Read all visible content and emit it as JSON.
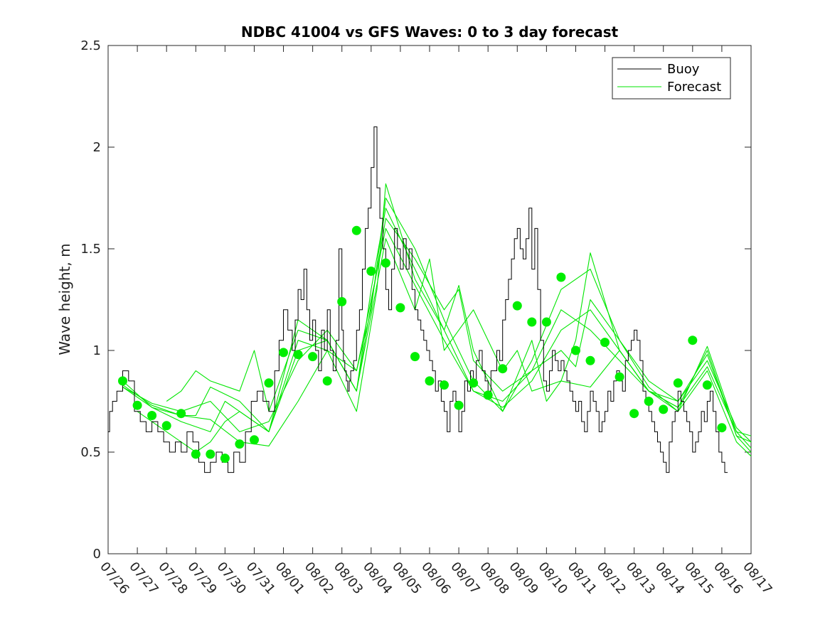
{
  "chart_data": {
    "type": "line",
    "title": "NDBC 41004 vs GFS Waves: 0 to 3 day forecast",
    "xlabel": "",
    "ylabel": "Wave height, m",
    "xlim": [
      0,
      22
    ],
    "ylim": [
      0,
      2.5
    ],
    "yticks": [
      "0",
      "0.5",
      "1",
      "1.5",
      "2",
      "2.5"
    ],
    "ytick_values": [
      0,
      0.5,
      1,
      1.5,
      2,
      2.5
    ],
    "xtick_labels": [
      "07/26",
      "07/27",
      "07/28",
      "07/29",
      "07/30",
      "07/31",
      "08/01",
      "08/02",
      "08/03",
      "08/04",
      "08/05",
      "08/06",
      "08/07",
      "08/08",
      "08/09",
      "08/10",
      "08/11",
      "08/12",
      "08/13",
      "08/14",
      "08/15",
      "08/16",
      "08/17"
    ],
    "legend": {
      "position": "top-right",
      "entries": [
        {
          "name": "Buoy",
          "color": "#000000"
        },
        {
          "name": "Forecast",
          "color": "#00e600"
        }
      ]
    },
    "colors": {
      "buoy": "#000000",
      "forecast": "#00e600",
      "analysis_dots": "#00ee00"
    },
    "buoy": {
      "name": "Buoy",
      "x": [
        0,
        0.05,
        0.15,
        0.3,
        0.5,
        0.7,
        0.9,
        1.1,
        1.3,
        1.5,
        1.7,
        1.9,
        2.1,
        2.3,
        2.5,
        2.7,
        2.9,
        3.1,
        3.3,
        3.5,
        3.7,
        3.9,
        4.1,
        4.3,
        4.5,
        4.7,
        4.9,
        5.1,
        5.3,
        5.5,
        5.7,
        5.85,
        6.0,
        6.15,
        6.3,
        6.4,
        6.5,
        6.6,
        6.7,
        6.8,
        6.9,
        7.0,
        7.1,
        7.2,
        7.3,
        7.4,
        7.5,
        7.6,
        7.7,
        7.8,
        7.9,
        8.0,
        8.05,
        8.1,
        8.15,
        8.2,
        8.25,
        8.3,
        8.4,
        8.5,
        8.6,
        8.7,
        8.8,
        8.9,
        9.0,
        9.1,
        9.2,
        9.3,
        9.4,
        9.5,
        9.6,
        9.7,
        9.8,
        9.9,
        10.0,
        10.1,
        10.2,
        10.3,
        10.4,
        10.5,
        10.6,
        10.7,
        10.8,
        10.9,
        11.0,
        11.1,
        11.2,
        11.3,
        11.4,
        11.5,
        11.6,
        11.7,
        11.8,
        11.9,
        12.0,
        12.1,
        12.2,
        12.3,
        12.4,
        12.5,
        12.6,
        12.7,
        12.8,
        12.9,
        13.0,
        13.1,
        13.2,
        13.3,
        13.4,
        13.5,
        13.6,
        13.7,
        13.8,
        13.9,
        14.0,
        14.1,
        14.2,
        14.3,
        14.4,
        14.5,
        14.6,
        14.7,
        14.8,
        14.9,
        15.0,
        15.1,
        15.2,
        15.3,
        15.4,
        15.5,
        15.6,
        15.7,
        15.8,
        15.9,
        16.0,
        16.1,
        16.2,
        16.3,
        16.4,
        16.5,
        16.6,
        16.7,
        16.8,
        16.9,
        17.0,
        17.1,
        17.2,
        17.3,
        17.4,
        17.5,
        17.6,
        17.7,
        17.8,
        17.9,
        18.0,
        18.1,
        18.2,
        18.3,
        18.4,
        18.5,
        18.6,
        18.7,
        18.8,
        18.9,
        19.0,
        19.1,
        19.2,
        19.3,
        19.4,
        19.5,
        19.6,
        19.7,
        19.8,
        19.9,
        20.0,
        20.1,
        20.2,
        20.3,
        20.4,
        20.5,
        20.6,
        20.7,
        20.8,
        20.9,
        21.0,
        21.1,
        21.2
      ],
      "y": [
        0.6,
        0.7,
        0.75,
        0.8,
        0.9,
        0.85,
        0.7,
        0.65,
        0.6,
        0.65,
        0.6,
        0.55,
        0.5,
        0.55,
        0.5,
        0.6,
        0.55,
        0.45,
        0.4,
        0.45,
        0.5,
        0.45,
        0.4,
        0.5,
        0.45,
        0.6,
        0.75,
        0.8,
        0.75,
        0.7,
        0.9,
        1.05,
        1.2,
        1.1,
        1.0,
        1.15,
        1.3,
        1.25,
        1.4,
        1.2,
        1.05,
        1.15,
        1.0,
        0.9,
        1.1,
        1.0,
        1.2,
        1.0,
        0.9,
        1.05,
        1.5,
        1.1,
        0.95,
        0.9,
        0.85,
        0.8,
        0.85,
        0.9,
        0.95,
        1.1,
        1.2,
        1.4,
        1.6,
        1.7,
        1.9,
        2.1,
        1.8,
        1.65,
        1.5,
        1.3,
        1.2,
        1.4,
        1.6,
        1.5,
        1.4,
        1.55,
        1.4,
        1.5,
        1.3,
        1.2,
        1.15,
        1.1,
        1.05,
        1.0,
        0.95,
        0.9,
        0.8,
        0.85,
        0.75,
        0.7,
        0.6,
        0.75,
        0.8,
        0.75,
        0.6,
        0.7,
        0.85,
        0.8,
        0.9,
        0.85,
        0.95,
        1.0,
        0.9,
        0.85,
        0.8,
        0.9,
        0.9,
        1.0,
        0.95,
        1.15,
        1.25,
        1.35,
        1.45,
        1.55,
        1.6,
        1.5,
        1.45,
        1.55,
        1.7,
        1.4,
        1.6,
        1.3,
        1.05,
        0.85,
        0.8,
        0.9,
        1.0,
        0.95,
        0.9,
        0.95,
        0.9,
        0.85,
        0.8,
        0.75,
        0.7,
        0.75,
        0.65,
        0.6,
        0.7,
        0.8,
        0.75,
        0.7,
        0.6,
        0.65,
        0.7,
        0.8,
        0.75,
        0.85,
        0.9,
        0.85,
        0.8,
        0.95,
        1.0,
        1.05,
        1.1,
        1.05,
        0.95,
        0.8,
        0.75,
        0.7,
        0.65,
        0.6,
        0.55,
        0.5,
        0.45,
        0.4,
        0.55,
        0.65,
        0.7,
        0.8,
        0.75,
        0.7,
        0.65,
        0.6,
        0.5,
        0.55,
        0.6,
        0.7,
        0.65,
        0.75,
        0.8,
        0.7,
        0.6,
        0.5,
        0.45,
        0.4,
        0.4
      ]
    },
    "forecast": {
      "name": "Forecast",
      "series": [
        {
          "x": [
            0.5,
            1.5,
            2.5,
            3.5,
            4.5,
            5.5,
            6.5,
            7.5,
            8.5,
            9.5,
            10.5,
            11.5,
            12.5,
            13.5,
            14.5,
            15.5,
            16.5,
            17.5,
            18.5,
            19.5,
            20.5,
            21.5,
            22
          ],
          "y": [
            0.85,
            0.72,
            0.68,
            0.66,
            0.55,
            0.53,
            0.75,
            1.0,
            0.9,
            1.6,
            1.32,
            1.05,
            0.8,
            0.72,
            0.85,
            1.1,
            1.2,
            1.0,
            0.8,
            0.72,
            0.92,
            0.6,
            0.52
          ]
        },
        {
          "x": [
            0.5,
            1.5,
            2.5,
            3.0,
            3.5,
            4.5,
            5.5,
            6.5,
            7.5,
            8.5,
            9.0,
            9.5,
            10.5,
            11.5,
            12.5,
            13.5,
            14.5,
            15.5,
            16.5,
            17.5,
            18.5,
            19.5,
            20.5,
            21.5,
            22
          ],
          "y": [
            0.83,
            0.73,
            0.68,
            0.68,
            0.82,
            0.75,
            0.6,
            1.0,
            1.05,
            0.8,
            1.3,
            1.7,
            1.4,
            1.1,
            0.8,
            0.75,
            0.9,
            1.2,
            1.1,
            0.95,
            0.8,
            0.72,
            1.0,
            0.58,
            0.5
          ]
        },
        {
          "x": [
            0.5,
            1.5,
            2.5,
            3.5,
            4.5,
            5.5,
            6.5,
            7.5,
            8.5,
            9.0,
            9.5,
            10.5,
            11.5,
            12.5,
            13.5,
            14.5,
            15.5,
            16.5,
            17.5,
            18.5,
            19.5,
            20.5,
            21.5,
            22
          ],
          "y": [
            0.82,
            0.74,
            0.7,
            0.75,
            0.6,
            0.65,
            0.95,
            1.1,
            0.9,
            1.2,
            1.75,
            1.5,
            1.15,
            0.85,
            0.7,
            0.95,
            1.3,
            1.4,
            1.05,
            0.85,
            0.75,
            0.95,
            0.62,
            0.55
          ]
        },
        {
          "x": [
            2.0,
            2.5,
            3.0,
            3.5,
            4.5,
            5.0,
            5.5,
            6.5,
            7.5,
            8.5,
            9.5,
            10.5,
            11.0,
            11.5,
            12.5,
            13.5,
            14.0,
            14.5,
            15.5,
            16.5,
            17.5,
            18.5,
            19.5,
            20.5,
            21.5,
            22
          ],
          "y": [
            0.75,
            0.8,
            0.9,
            0.85,
            0.8,
            1.0,
            0.7,
            1.1,
            1.05,
            0.8,
            1.55,
            1.2,
            1.45,
            1.0,
            1.2,
            0.9,
            1.0,
            0.8,
            0.85,
            0.82,
            1.0,
            0.8,
            0.7,
            0.9,
            0.55,
            0.48
          ]
        },
        {
          "x": [
            1.0,
            2.0,
            3.0,
            3.5,
            4.0,
            4.5,
            5.5,
            6.5,
            7.5,
            8.5,
            9.2,
            9.5,
            10.5,
            11.5,
            12.0,
            12.5,
            13.5,
            14.5,
            15.0,
            15.5,
            16.0,
            16.5,
            17.5,
            18.5,
            19.5,
            20.5,
            21.5,
            22
          ],
          "y": [
            0.7,
            0.6,
            0.5,
            0.55,
            0.65,
            0.7,
            0.6,
            1.05,
            1.0,
            0.7,
            1.3,
            1.82,
            1.35,
            1.1,
            1.32,
            1.0,
            0.7,
            1.05,
            0.75,
            0.85,
            1.05,
            1.48,
            1.0,
            0.8,
            0.75,
            0.98,
            0.58,
            0.55
          ]
        },
        {
          "x": [
            0.5,
            1.5,
            2.5,
            3.5,
            4.0,
            4.5,
            5.5,
            6.5,
            7.5,
            8.5,
            9.5,
            10.5,
            11.5,
            12.0,
            12.5,
            13.5,
            14.5,
            15.5,
            16.0,
            16.5,
            17.5,
            18.5,
            19.5,
            20.5,
            21.5,
            22
          ],
          "y": [
            0.82,
            0.72,
            0.65,
            0.6,
            0.75,
            0.7,
            0.6,
            1.15,
            1.05,
            0.8,
            1.65,
            1.45,
            1.2,
            1.3,
            0.95,
            0.8,
            0.9,
            1.0,
            0.92,
            1.25,
            1.05,
            0.82,
            0.7,
            1.02,
            0.6,
            0.58
          ]
        }
      ]
    },
    "analysis_points": {
      "x": [
        0.5,
        1.0,
        1.5,
        2.0,
        2.5,
        3.0,
        3.5,
        4.0,
        4.5,
        5.0,
        5.5,
        6.0,
        6.5,
        7.0,
        7.5,
        8.0,
        8.5,
        9.0,
        9.5,
        10.0,
        10.5,
        11.0,
        11.5,
        12.0,
        12.5,
        13.0,
        13.5,
        14.0,
        14.5,
        15.0,
        15.5,
        16.0,
        16.5,
        17.0,
        17.5,
        18.0,
        18.5,
        19.0,
        19.5,
        20.0,
        20.5,
        21.0
      ],
      "y": [
        0.85,
        0.73,
        0.68,
        0.63,
        0.69,
        0.49,
        0.49,
        0.47,
        0.54,
        0.56,
        0.84,
        0.99,
        0.98,
        0.97,
        0.85,
        1.24,
        1.59,
        1.39,
        1.43,
        1.21,
        0.97,
        0.85,
        0.83,
        0.73,
        0.84,
        0.78,
        0.91,
        1.22,
        1.14,
        1.14,
        1.36,
        1.0,
        0.95,
        1.04,
        0.87,
        0.69,
        0.75,
        0.71,
        0.84,
        1.05,
        0.83,
        0.62
      ]
    }
  }
}
